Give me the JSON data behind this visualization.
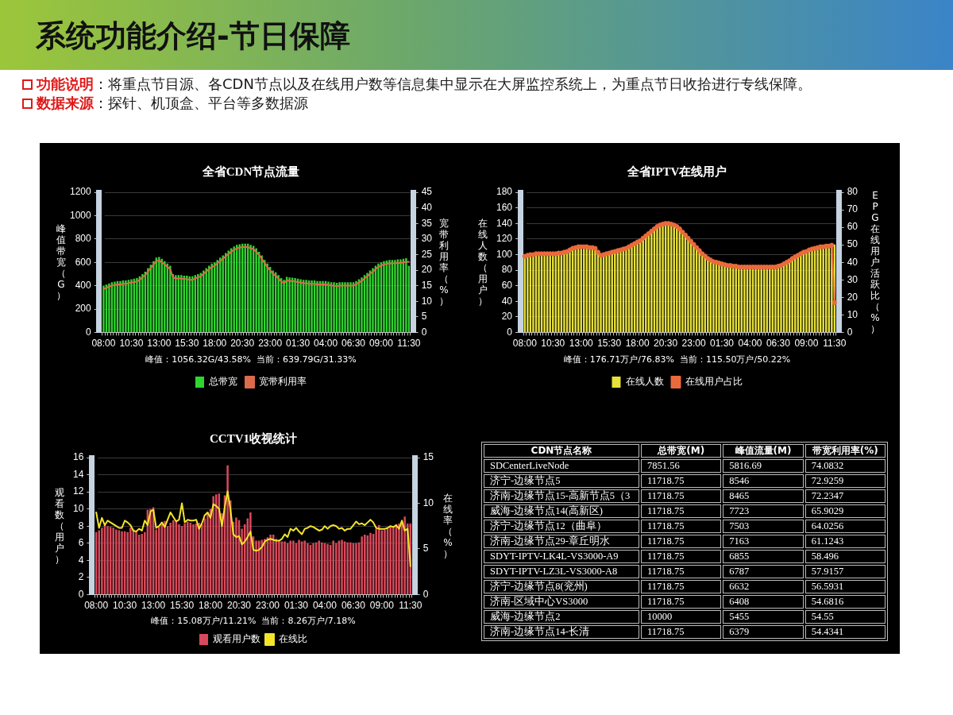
{
  "chart_data": [
    {
      "type": "other",
      "title": "系统功能介绍-节日保障",
      "annotations": [
        "功能说明：将重点节目源、各CDN节点以及在线用户数等信息集中显示在大屏监控系统上，为重点节日收拾进行专线保障。",
        "数据来源：探针、机顶盒、平台等多数据源"
      ]
    },
    {
      "type": "bar",
      "title": "全省CDN节点流量",
      "ylabel": "峰值带宽（G）",
      "y2label": "宽带利用率（%）",
      "categories": [
        "08:00",
        null,
        null,
        null,
        null,
        null,
        null,
        null,
        null,
        null,
        "10:30",
        null,
        null,
        null,
        null,
        null,
        null,
        null,
        null,
        null,
        "13:00",
        null,
        null,
        null,
        null,
        null,
        null,
        null,
        null,
        null,
        "15:30",
        null,
        null,
        null,
        null,
        null,
        null,
        null,
        null,
        null,
        "18:00",
        null,
        null,
        null,
        null,
        null,
        null,
        null,
        null,
        null,
        "20:30",
        null,
        null,
        null,
        null,
        null,
        null,
        null,
        null,
        null,
        "23:00",
        null,
        null,
        null,
        null,
        null,
        null,
        null,
        null,
        null,
        "01:30",
        null,
        null,
        null,
        null,
        null,
        null,
        null,
        null,
        null,
        "04:00",
        null,
        null,
        null,
        null,
        null,
        null,
        null,
        null,
        null,
        "06:30",
        null,
        null,
        null,
        null,
        null,
        null,
        null,
        null,
        null,
        "09:00",
        null,
        null,
        null,
        null,
        null,
        null,
        null,
        null,
        null,
        "11:30"
      ],
      "series": [
        {
          "name": "总带宽",
          "type": "bar",
          "color": "#2fd42f",
          "values": [
            400,
            410,
            420,
            430,
            435,
            440,
            440,
            445,
            445,
            450,
            455,
            460,
            465,
            480,
            500,
            520,
            550,
            580,
            610,
            640,
            645,
            630,
            610,
            590,
            570,
            500,
            490,
            490,
            490,
            485,
            485,
            480,
            480,
            490,
            500,
            510,
            530,
            550,
            570,
            590,
            600,
            620,
            640,
            660,
            680,
            700,
            720,
            735,
            750,
            755,
            760,
            760,
            760,
            750,
            740,
            720,
            690,
            660,
            620,
            590,
            560,
            530,
            515,
            490,
            465,
            450,
            475,
            470,
            468,
            465,
            460,
            455,
            450,
            450,
            445,
            445,
            445,
            440,
            440,
            440,
            440,
            435,
            430,
            430,
            425,
            430,
            430,
            430,
            430,
            430,
            430,
            440,
            455,
            470,
            490,
            510,
            530,
            550,
            570,
            590,
            600,
            610,
            615,
            620,
            620,
            620,
            625,
            625,
            630,
            635,
            570
          ]
        },
        {
          "name": "宽带利用率",
          "type": "line",
          "axis": "y2",
          "color": "#dc6a4c",
          "values": [
            13.9,
            14.3,
            14.7,
            15.0,
            15.2,
            15.4,
            15.4,
            15.6,
            15.6,
            15.8,
            16.0,
            16.2,
            16.3,
            16.9,
            17.7,
            18.4,
            19.5,
            20.7,
            21.8,
            22.9,
            23.1,
            22.5,
            21.8,
            21.0,
            20.3,
            17.7,
            17.3,
            17.3,
            17.3,
            17.1,
            17.1,
            16.9,
            16.9,
            17.3,
            17.7,
            18.0,
            18.8,
            19.5,
            20.3,
            21.0,
            21.4,
            22.2,
            22.9,
            23.7,
            24.4,
            25.2,
            25.9,
            26.5,
            27.0,
            27.2,
            27.4,
            27.4,
            27.4,
            27.0,
            26.7,
            25.9,
            24.8,
            23.7,
            22.2,
            21.0,
            19.9,
            18.8,
            18.2,
            17.3,
            16.3,
            15.8,
            16.7,
            16.5,
            16.5,
            16.3,
            16.2,
            16.0,
            15.8,
            15.8,
            15.6,
            15.6,
            15.6,
            15.4,
            15.4,
            15.4,
            15.4,
            15.2,
            15.0,
            15.0,
            14.8,
            15.0,
            15.0,
            15.0,
            15.0,
            15.0,
            15.0,
            15.4,
            16.0,
            16.5,
            17.3,
            18.0,
            18.8,
            19.5,
            20.3,
            21.0,
            21.4,
            21.8,
            22.0,
            22.2,
            22.2,
            22.2,
            22.3,
            22.3,
            22.5,
            22.7,
            22.7
          ]
        }
      ],
      "ylim": [
        0,
        1200
      ],
      "yticks": [
        0,
        200,
        400,
        600,
        800,
        1000,
        1200
      ],
      "y2lim": [
        0,
        45
      ],
      "y2ticks": [
        0,
        5,
        10,
        15,
        20,
        25,
        30,
        35,
        40,
        45
      ],
      "grid": "y",
      "legend": "bottom",
      "annotations": [
        "峰值：1056.32G/43.58%  当前：639.79G/31.33%"
      ]
    },
    {
      "type": "bar",
      "title": "全省IPTV在线用户",
      "ylabel": "在线人数（用户）",
      "y2label": "EPG在线用户活跃比（%）",
      "categories": [
        "08:00",
        null,
        null,
        null,
        null,
        null,
        null,
        null,
        null,
        null,
        "10:30",
        null,
        null,
        null,
        null,
        null,
        null,
        null,
        null,
        null,
        "13:00",
        null,
        null,
        null,
        null,
        null,
        null,
        null,
        null,
        null,
        "15:30",
        null,
        null,
        null,
        null,
        null,
        null,
        null,
        null,
        null,
        "18:00",
        null,
        null,
        null,
        null,
        null,
        null,
        null,
        null,
        null,
        "20:30",
        null,
        null,
        null,
        null,
        null,
        null,
        null,
        null,
        null,
        "23:00",
        null,
        null,
        null,
        null,
        null,
        null,
        null,
        null,
        null,
        "01:30",
        null,
        null,
        null,
        null,
        null,
        null,
        null,
        null,
        null,
        "04:00",
        null,
        null,
        null,
        null,
        null,
        null,
        null,
        null,
        null,
        "06:30",
        null,
        null,
        null,
        null,
        null,
        null,
        null,
        null,
        null,
        "09:00",
        null,
        null,
        null,
        null,
        null,
        null,
        null,
        null,
        null,
        "11:30"
      ],
      "series": [
        {
          "name": "在线人数",
          "type": "bar",
          "color": "#e6e03a",
          "values": [
            98,
            99,
            100,
            100,
            101,
            101,
            101,
            101,
            101,
            101,
            101,
            101,
            102,
            102,
            103,
            104,
            106,
            108,
            109,
            110,
            110,
            110,
            110,
            109,
            109,
            108,
            103,
            99,
            100,
            101,
            102,
            103,
            104,
            105,
            106,
            107,
            108,
            110,
            112,
            114,
            116,
            118,
            121,
            124,
            127,
            130,
            133,
            136,
            138,
            139,
            140,
            140,
            139,
            138,
            136,
            133,
            129,
            125,
            121,
            117,
            113,
            109,
            105,
            101,
            98,
            95,
            93,
            91,
            90,
            89,
            88,
            87,
            86,
            86,
            85,
            85,
            84,
            84,
            84,
            84,
            84,
            84,
            84,
            84,
            84,
            84,
            84,
            84,
            84,
            84,
            85,
            86,
            88,
            90,
            92,
            95,
            97,
            99,
            101,
            103,
            104,
            106,
            107,
            108,
            109,
            110,
            110,
            111,
            111,
            112,
            113
          ]
        },
        {
          "name": "在线用户占比",
          "type": "line",
          "axis": "y2",
          "color": "#ea6a3c",
          "marker": "circle",
          "values": [
            43.5,
            44.0,
            44.4,
            44.4,
            44.9,
            44.9,
            44.9,
            44.9,
            44.9,
            44.9,
            44.9,
            44.9,
            45.3,
            45.3,
            45.8,
            46.2,
            47.1,
            48.0,
            48.4,
            48.9,
            48.9,
            48.9,
            48.9,
            48.4,
            48.4,
            48.0,
            45.8,
            44.0,
            44.4,
            44.9,
            45.3,
            45.8,
            46.2,
            46.7,
            47.1,
            47.6,
            48.0,
            48.9,
            49.8,
            50.7,
            51.6,
            52.4,
            53.8,
            55.1,
            56.4,
            57.8,
            59.1,
            60.4,
            61.3,
            61.8,
            62.2,
            62.2,
            61.8,
            61.3,
            60.4,
            59.1,
            57.3,
            55.6,
            53.8,
            52.0,
            50.2,
            48.4,
            46.7,
            44.9,
            43.6,
            42.2,
            41.3,
            40.4,
            40.0,
            39.6,
            39.1,
            38.7,
            38.2,
            38.2,
            37.8,
            37.8,
            37.3,
            37.3,
            37.3,
            37.3,
            37.3,
            37.3,
            37.3,
            37.3,
            37.3,
            37.3,
            37.3,
            37.3,
            37.3,
            37.3,
            37.8,
            38.2,
            39.1,
            40.0,
            40.9,
            42.2,
            43.1,
            44.0,
            44.9,
            45.8,
            46.2,
            47.1,
            47.6,
            48.0,
            48.4,
            48.9,
            48.9,
            49.3,
            49.3,
            49.8,
            17.0
          ]
        }
      ],
      "ylim": [
        0,
        180
      ],
      "yticks": [
        0,
        20,
        40,
        60,
        80,
        100,
        120,
        140,
        160,
        180
      ],
      "y2lim": [
        0,
        80
      ],
      "y2ticks": [
        0,
        10,
        20,
        30,
        40,
        50,
        60,
        70,
        80
      ],
      "grid": "y",
      "legend": "bottom",
      "annotations": [
        "峰值：176.71万户/76.83%  当前：115.50万户/50.22%"
      ]
    },
    {
      "type": "bar",
      "title": "CCTV1收视统计",
      "ylabel": "观看数（用户）",
      "y2label": "在线率（%）",
      "categories": [
        "08:00",
        null,
        null,
        null,
        null,
        null,
        null,
        null,
        null,
        null,
        "10:30",
        null,
        null,
        null,
        null,
        null,
        null,
        null,
        null,
        null,
        "13:00",
        null,
        null,
        null,
        null,
        null,
        null,
        null,
        null,
        null,
        "15:30",
        null,
        null,
        null,
        null,
        null,
        null,
        null,
        null,
        null,
        "18:00",
        null,
        null,
        null,
        null,
        null,
        null,
        null,
        null,
        null,
        "20:30",
        null,
        null,
        null,
        null,
        null,
        null,
        null,
        null,
        null,
        "23:00",
        null,
        null,
        null,
        null,
        null,
        null,
        null,
        null,
        null,
        "01:30",
        null,
        null,
        null,
        null,
        null,
        null,
        null,
        null,
        null,
        "04:00",
        null,
        null,
        null,
        null,
        null,
        null,
        null,
        null,
        null,
        "06:30",
        null,
        null,
        null,
        null,
        null,
        null,
        null,
        null,
        null,
        "09:00",
        null,
        null,
        null,
        null,
        null,
        null,
        null,
        null,
        null,
        "11:30"
      ],
      "series": [
        {
          "name": "观看用户数",
          "type": "bar",
          "color": "#d9495b",
          "values": [
            7.3,
            7.5,
            7.8,
            8.1,
            8.0,
            7.9,
            7.8,
            7.6,
            7.5,
            7.4,
            7.4,
            7.3,
            7.8,
            7.6,
            7.3,
            7.0,
            7.1,
            7.3,
            9.9,
            10.0,
            10.2,
            7.6,
            7.9,
            8.2,
            8.6,
            8.0,
            8.4,
            8.7,
            8.5,
            8.2,
            8.0,
            8.3,
            8.5,
            8.4,
            8.2,
            8.3,
            8.4,
            8.2,
            8.9,
            9.6,
            10.0,
            11.5,
            11.7,
            11.8,
            9.5,
            11.6,
            15.1,
            11.0,
            8.5,
            9.0,
            8.7,
            7.7,
            8.2,
            8.9,
            9.6,
            6.8,
            6.3,
            6.3,
            6.4,
            6.5,
            6.7,
            7.0,
            7.0,
            6.5,
            6.3,
            6.2,
            6.2,
            6.0,
            6.3,
            6.3,
            6.0,
            6.4,
            6.2,
            6.3,
            6.0,
            5.8,
            6.0,
            6.1,
            6.3,
            6.1,
            6.0,
            5.9,
            5.8,
            6.3,
            6.0,
            6.3,
            6.4,
            6.2,
            6.1,
            6.1,
            6.0,
            6.0,
            6.1,
            6.8,
            7.0,
            6.9,
            7.2,
            7.1,
            7.7,
            8.1,
            7.5,
            7.6,
            7.8,
            7.9,
            8.0,
            8.2,
            8.3,
            8.5,
            9.1,
            8.3,
            8.3
          ]
        },
        {
          "name": "在线比",
          "type": "line",
          "axis": "y2",
          "color": "#f2e52a",
          "values": [
            9.0,
            7.3,
            8.4,
            7.6,
            8.1,
            7.9,
            7.7,
            7.5,
            7.3,
            7.3,
            8.1,
            7.9,
            7.6,
            7.0,
            6.9,
            7.2,
            7.0,
            8.1,
            7.6,
            9.1,
            9.3,
            7.3,
            7.5,
            7.9,
            7.4,
            8.2,
            9.0,
            8.5,
            8.0,
            8.2,
            10.0,
            7.9,
            8.2,
            8.1,
            8.1,
            8.2,
            7.2,
            7.8,
            8.7,
            9.0,
            8.4,
            9.9,
            9.7,
            9.4,
            7.5,
            9.6,
            11.3,
            9.3,
            6.6,
            6.3,
            6.4,
            5.5,
            5.8,
            6.3,
            6.9,
            4.9,
            4.8,
            4.9,
            5.2,
            5.8,
            6.0,
            6.1,
            6.0,
            5.9,
            5.9,
            6.1,
            6.6,
            6.3,
            7.2,
            7.0,
            7.3,
            6.9,
            6.6,
            7.2,
            7.3,
            7.5,
            7.4,
            7.2,
            7.0,
            7.1,
            7.5,
            7.2,
            7.5,
            7.6,
            7.5,
            7.2,
            7.3,
            7.0,
            7.2,
            7.2,
            7.6,
            8.0,
            7.7,
            7.8,
            7.6,
            7.9,
            8.2,
            7.9,
            7.3,
            7.2,
            7.2,
            7.2,
            7.3,
            7.5,
            7.4,
            7.6,
            7.2,
            8.1,
            7.0,
            7.2,
            3.1
          ]
        }
      ],
      "ylim": [
        0,
        16
      ],
      "yticks": [
        0,
        2,
        4,
        6,
        8,
        10,
        12,
        14,
        16
      ],
      "y2lim": [
        0,
        15
      ],
      "y2ticks": [
        0,
        5,
        10,
        15
      ],
      "grid": "y",
      "legend": "bottom",
      "annotations": [
        "峰值：15.08万户/11.21%  当前：8.26万户/7.18%"
      ]
    },
    {
      "type": "heatmap",
      "ylabel": "CDN节点名称",
      "categories": [
        "总带宽(M)",
        "峰值流量(M)",
        "带宽利用率(%)"
      ],
      "y_categories": [
        "SDCenterLiveNode",
        "济宁-边缘节点5",
        "济南-边缘节点15-高新节点5（3",
        "威海-边缘节点14(高新区)",
        "济宁-边缘节点12（曲阜）",
        "济南-边缘节点29-章丘明水",
        "SDYT-IPTV-LK4L-VS3000-A9",
        "SDYT-IPTV-LZ3L-VS3000-A8",
        "济宁-边缘节点8(兖州)",
        "济南-区域中心VS3000",
        "威海-边缘节点2",
        "济南-边缘节点14-长清"
      ],
      "cells": [
        [
          7851.56,
          5816.69,
          74.0832
        ],
        [
          11718.75,
          8546,
          72.9259
        ],
        [
          11718.75,
          8465,
          72.2347
        ],
        [
          11718.75,
          7723,
          65.9029
        ],
        [
          11718.75,
          7503,
          64.0256
        ],
        [
          11718.75,
          7163,
          61.1243
        ],
        [
          11718.75,
          6855,
          58.496
        ],
        [
          11718.75,
          6787,
          57.9157
        ],
        [
          11718.75,
          6632,
          56.5931
        ],
        [
          11718.75,
          6408,
          54.6816
        ],
        [
          10000,
          5455,
          54.55
        ],
        [
          11718.75,
          6379,
          54.4341
        ]
      ],
      "data_labels": true
    }
  ]
}
